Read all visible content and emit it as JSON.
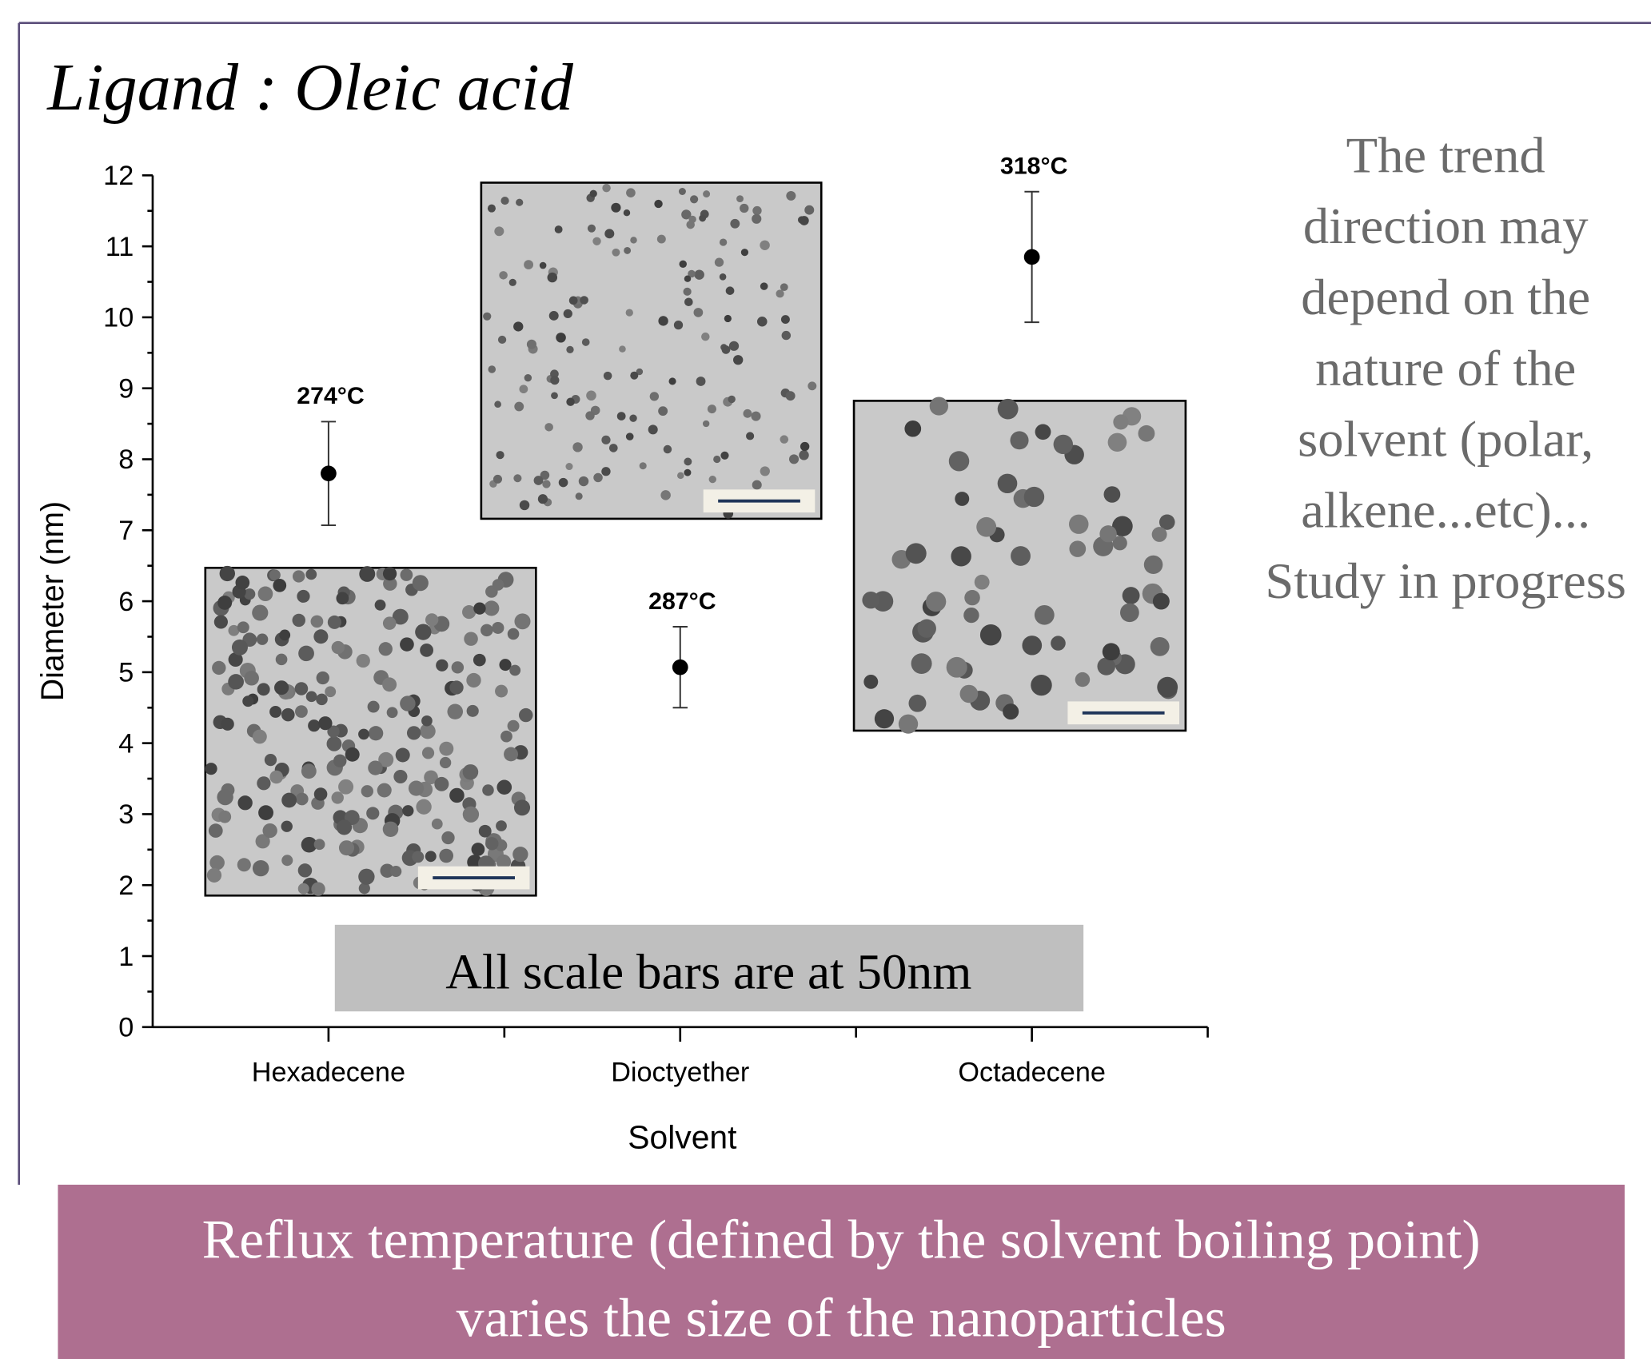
{
  "heading": "Ligand  : Oleic acid",
  "side_note": [
    "The trend",
    "direction may",
    "depend on the",
    "nature of the",
    "solvent (polar,",
    "alkene...etc)...",
    "Study in progress"
  ],
  "scale_note": "All scale bars are at 50nm",
  "banner": [
    "Reflux temperature (defined by the solvent boiling point)",
    "varies the size of the nanoparticles"
  ],
  "chart_data": {
    "type": "errorbar",
    "x_label": "Solvent",
    "y_label": "Diameter (nm)",
    "categories": [
      "Hexadecene",
      "Dioctyether",
      "Octadecene"
    ],
    "values": [
      7.8,
      5.07,
      10.85
    ],
    "errors": [
      0.73,
      0.57,
      0.92
    ],
    "annotations": [
      "274°C",
      "287°C",
      "318°C"
    ],
    "color": "#000000",
    "ylim": [
      0,
      12
    ],
    "yticks": [
      0,
      1,
      2,
      3,
      4,
      5,
      6,
      7,
      8,
      9,
      10,
      11,
      12
    ]
  }
}
